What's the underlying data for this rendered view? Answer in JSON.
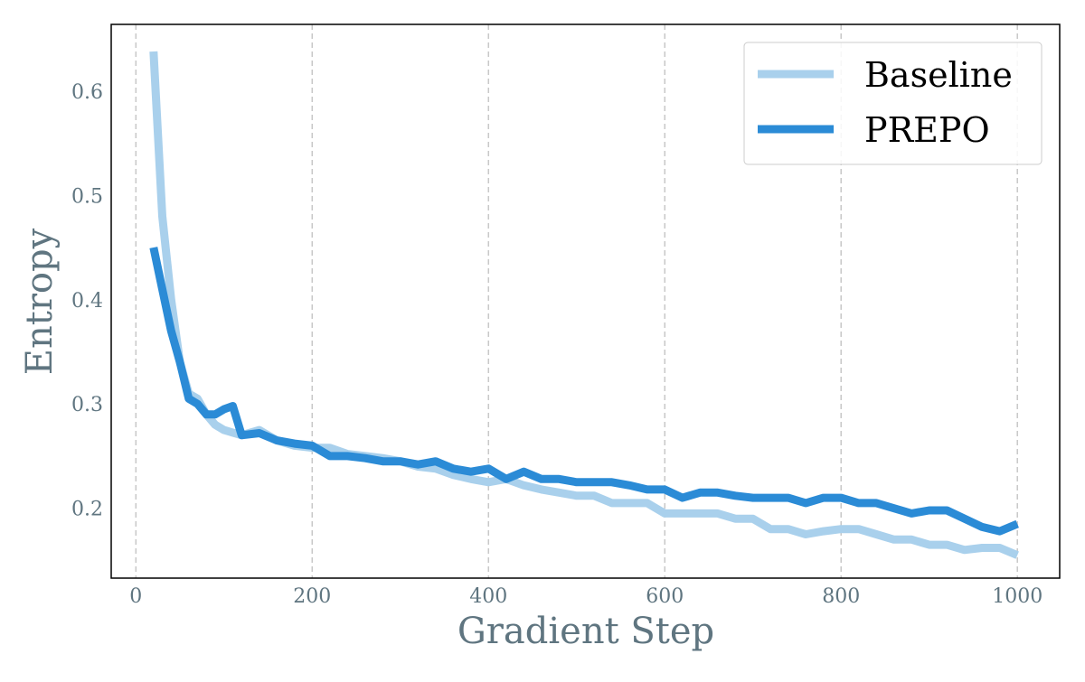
{
  "chart_data": {
    "type": "line",
    "title": "",
    "xlabel": "Gradient Step",
    "ylabel": "Entropy",
    "xlim": [
      -28,
      1048
    ],
    "ylim": [
      0.133,
      0.664
    ],
    "xticks": [
      0,
      200,
      400,
      600,
      800,
      1000
    ],
    "yticks": [
      0.2,
      0.3,
      0.4,
      0.5,
      0.6
    ],
    "xtick_labels": [
      "0",
      "200",
      "400",
      "600",
      "800",
      "1000"
    ],
    "ytick_labels": [
      "0.2",
      "0.3",
      "0.4",
      "0.5",
      "0.6"
    ],
    "grid": "vertical dashed",
    "legend_position": "top-right",
    "series": [
      {
        "name": "Baseline",
        "color": "#a9d0ec",
        "x": [
          20,
          30,
          40,
          50,
          60,
          70,
          80,
          90,
          100,
          120,
          140,
          160,
          180,
          200,
          220,
          240,
          260,
          280,
          300,
          320,
          340,
          360,
          380,
          400,
          420,
          440,
          460,
          480,
          500,
          520,
          540,
          560,
          580,
          600,
          620,
          640,
          660,
          680,
          700,
          720,
          740,
          760,
          780,
          800,
          820,
          840,
          860,
          880,
          900,
          920,
          940,
          960,
          980,
          1000
        ],
        "y": [
          0.638,
          0.48,
          0.4,
          0.34,
          0.31,
          0.305,
          0.29,
          0.28,
          0.275,
          0.27,
          0.275,
          0.265,
          0.26,
          0.258,
          0.258,
          0.252,
          0.25,
          0.248,
          0.245,
          0.24,
          0.238,
          0.232,
          0.228,
          0.225,
          0.228,
          0.222,
          0.218,
          0.215,
          0.212,
          0.212,
          0.205,
          0.205,
          0.205,
          0.195,
          0.195,
          0.195,
          0.195,
          0.19,
          0.19,
          0.18,
          0.18,
          0.175,
          0.178,
          0.18,
          0.18,
          0.175,
          0.17,
          0.17,
          0.165,
          0.165,
          0.16,
          0.162,
          0.162,
          0.155
        ]
      },
      {
        "name": "PREPO",
        "color": "#2b8bd6",
        "x": [
          20,
          30,
          40,
          50,
          60,
          70,
          80,
          90,
          100,
          110,
          120,
          140,
          160,
          180,
          200,
          220,
          240,
          260,
          280,
          300,
          320,
          340,
          360,
          380,
          400,
          420,
          440,
          460,
          480,
          500,
          520,
          540,
          560,
          580,
          600,
          620,
          640,
          660,
          680,
          700,
          720,
          740,
          760,
          780,
          800,
          820,
          840,
          860,
          880,
          900,
          920,
          940,
          960,
          980,
          1000
        ],
        "y": [
          0.45,
          0.41,
          0.37,
          0.34,
          0.305,
          0.3,
          0.29,
          0.29,
          0.295,
          0.298,
          0.27,
          0.272,
          0.265,
          0.262,
          0.26,
          0.25,
          0.25,
          0.248,
          0.245,
          0.245,
          0.242,
          0.245,
          0.238,
          0.235,
          0.238,
          0.228,
          0.235,
          0.228,
          0.228,
          0.225,
          0.225,
          0.225,
          0.222,
          0.218,
          0.218,
          0.21,
          0.215,
          0.215,
          0.212,
          0.21,
          0.21,
          0.21,
          0.205,
          0.21,
          0.21,
          0.205,
          0.205,
          0.2,
          0.195,
          0.198,
          0.198,
          0.19,
          0.182,
          0.178,
          0.185
        ]
      }
    ]
  }
}
